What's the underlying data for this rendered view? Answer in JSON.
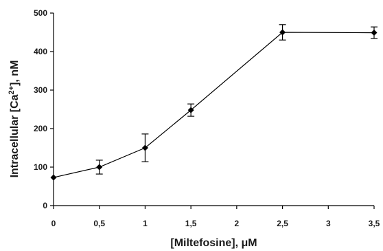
{
  "chart_data": {
    "type": "line",
    "title": "",
    "xlabel": "[Miltefosine], μM",
    "ylabel_parts": {
      "before": "Intracellular [Ca",
      "superscript": "2+",
      "after": "], nM"
    },
    "xlim": [
      0,
      3.5
    ],
    "ylim": [
      0,
      500
    ],
    "x_ticks": [
      0,
      0.5,
      1,
      1.5,
      2,
      2.5,
      3,
      3.5
    ],
    "x_tick_labels": [
      "0",
      "0,5",
      "1",
      "1,5",
      "2",
      "2,5",
      "3",
      "3,5"
    ],
    "y_ticks": [
      0,
      100,
      200,
      300,
      400,
      500
    ],
    "y_tick_labels": [
      "0",
      "100",
      "200",
      "300",
      "400",
      "500"
    ],
    "grid": false,
    "legend": "none",
    "series": [
      {
        "color": "#000000",
        "marker": "diamond",
        "points": [
          {
            "x": 0,
            "y": 73,
            "err": 0
          },
          {
            "x": 0.5,
            "y": 100,
            "err": 18
          },
          {
            "x": 1,
            "y": 150,
            "err": 36
          },
          {
            "x": 1.5,
            "y": 248,
            "err": 16
          },
          {
            "x": 2.5,
            "y": 450,
            "err": 20
          },
          {
            "x": 3.5,
            "y": 449,
            "err": 15
          }
        ]
      }
    ]
  }
}
